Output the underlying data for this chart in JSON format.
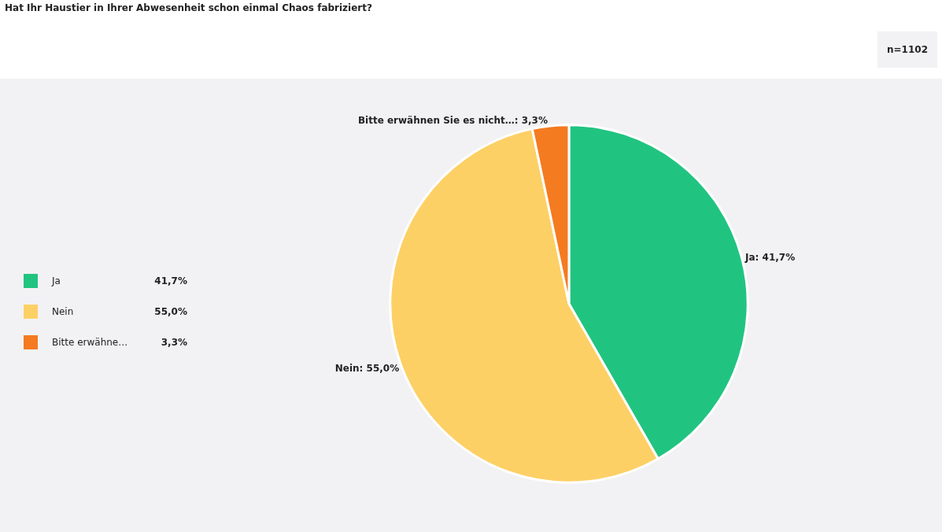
{
  "chart_data": {
    "type": "pie",
    "title": "Hat Ihr Haustier in Ihrer Abwesenheit schon einmal Chaos fabriziert?",
    "annotations": [
      "n=1102",
      "Ja: 41,7%",
      "Nein: 55,0%",
      "Bitte erwähnen Sie es nicht…: 3,3%"
    ],
    "categories": [
      "Ja",
      "Nein",
      "Bitte erwähne…"
    ],
    "values": [
      41.7,
      55.0,
      3.3
    ],
    "value_labels": [
      "41,7%",
      "55,0%",
      "3,3%"
    ],
    "colors": [
      "#20c480",
      "#fdd066",
      "#f47b20"
    ],
    "legend": "left"
  }
}
